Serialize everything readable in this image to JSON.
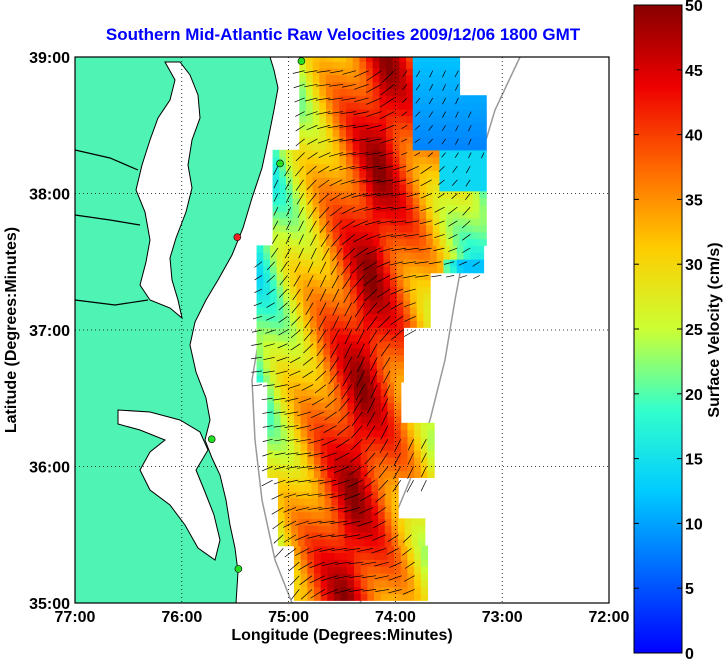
{
  "title": "Southern Mid-Atlantic Raw Velocities 2009/12/06 1800 GMT",
  "x_axis": {
    "label": "Longitude (Degrees:Minutes)",
    "ticks": [
      "77:00",
      "76:00",
      "75:00",
      "74:00",
      "73:00",
      "72:00"
    ],
    "values": [
      -77,
      -76,
      -75,
      -74,
      -73,
      -72
    ]
  },
  "y_axis": {
    "label": "Latitude (Degrees:Minutes)",
    "ticks": [
      "35:00",
      "36:00",
      "37:00",
      "38:00",
      "39:00"
    ],
    "values": [
      35,
      36,
      37,
      38,
      39
    ]
  },
  "colorbar": {
    "label": "Surface Velocity (cm/s)",
    "min": 0,
    "max": 50,
    "ticks": [
      "0",
      "5",
      "10",
      "15",
      "20",
      "25",
      "30",
      "35",
      "40",
      "45",
      "50"
    ]
  },
  "colors": {
    "land": "#4ff3b3",
    "water": "#ffffff",
    "coastline": "#000000",
    "title": "#0000ff",
    "station_green": "#22dd22",
    "station_red": "#ee2222",
    "shelf_contour": "#999999"
  },
  "grid": "dotted",
  "stations": [
    {
      "lon": -74.88,
      "lat": 38.97,
      "color": "green"
    },
    {
      "lon": -75.08,
      "lat": 38.22,
      "color": "green"
    },
    {
      "lon": -75.48,
      "lat": 37.68,
      "color": "red"
    },
    {
      "lon": -75.72,
      "lat": 36.2,
      "color": "green"
    },
    {
      "lon": -75.47,
      "lat": 35.25,
      "color": "green"
    }
  ]
}
